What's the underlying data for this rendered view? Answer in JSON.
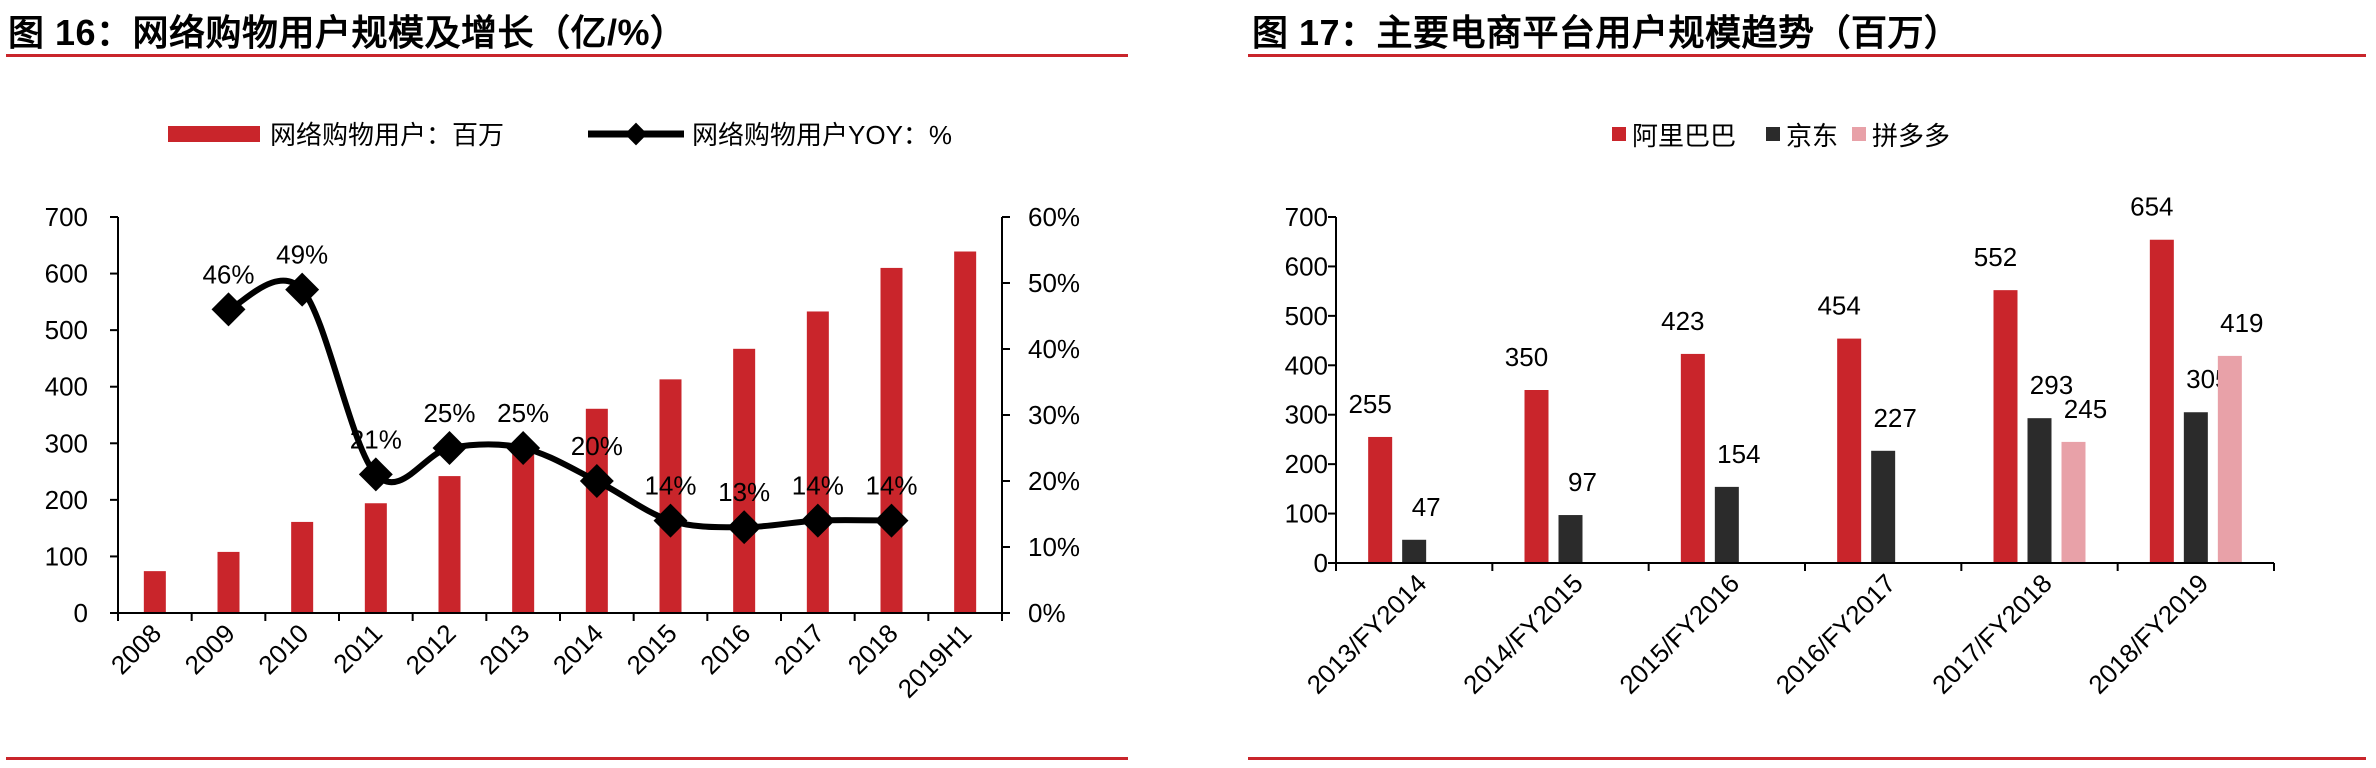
{
  "figure_left": {
    "title": "图 16：网络购物用户规模及增长（亿/%）"
  },
  "figure_right": {
    "title": "图 17：主要电商平台用户规模趋势（百万）"
  },
  "chart_data": [
    {
      "type": "bar+line",
      "categories": [
        "2008",
        "2009",
        "2010",
        "2011",
        "2012",
        "2013",
        "2014",
        "2015",
        "2016",
        "2017",
        "2018",
        "2019H1"
      ],
      "series": [
        {
          "name": "网络购物用户：百万",
          "type": "bar",
          "axis": "left",
          "color": "#c9252b",
          "values": [
            74,
            108,
            161,
            194,
            242,
            302,
            361,
            413,
            467,
            533,
            610,
            639
          ]
        },
        {
          "name": "网络购物用户YOY：%",
          "type": "line",
          "axis": "right",
          "color": "#000000",
          "values": [
            null,
            46,
            49,
            21,
            25,
            25,
            20,
            14,
            13,
            14,
            14,
            null
          ],
          "labels": [
            "",
            "46%",
            "49%",
            "21%",
            "25%",
            "25%",
            "20%",
            "14%",
            "13%",
            "14%",
            "14%",
            ""
          ]
        }
      ],
      "y_left": {
        "lim": [
          0,
          700
        ],
        "ticks": [
          "0",
          "100",
          "200",
          "300",
          "400",
          "500",
          "600",
          "700"
        ]
      },
      "y_right": {
        "lim": [
          0,
          60
        ],
        "ticks": [
          "0%",
          "10%",
          "20%",
          "30%",
          "40%",
          "50%",
          "60%"
        ]
      },
      "legend_position": "top",
      "grid": false
    },
    {
      "type": "bar",
      "categories": [
        "2013/FY2014",
        "2014/FY2015",
        "2015/FY2016",
        "2016/FY2017",
        "2017/FY2018",
        "2018/FY2019"
      ],
      "series": [
        {
          "name": "阿里巴巴",
          "color": "#c9252b",
          "values": [
            255,
            350,
            423,
            454,
            552,
            654
          ]
        },
        {
          "name": "京东",
          "color": "#2b2b2b",
          "values": [
            47,
            97,
            154,
            227,
            293,
            305
          ]
        },
        {
          "name": "拼多多",
          "color": "#e8a1a8",
          "values": [
            null,
            null,
            null,
            null,
            245,
            419
          ]
        }
      ],
      "y": {
        "lim": [
          0,
          700
        ],
        "ticks": [
          "0",
          "100",
          "200",
          "300",
          "400",
          "500",
          "600",
          "700"
        ]
      },
      "legend_position": "top",
      "grid": false
    }
  ]
}
